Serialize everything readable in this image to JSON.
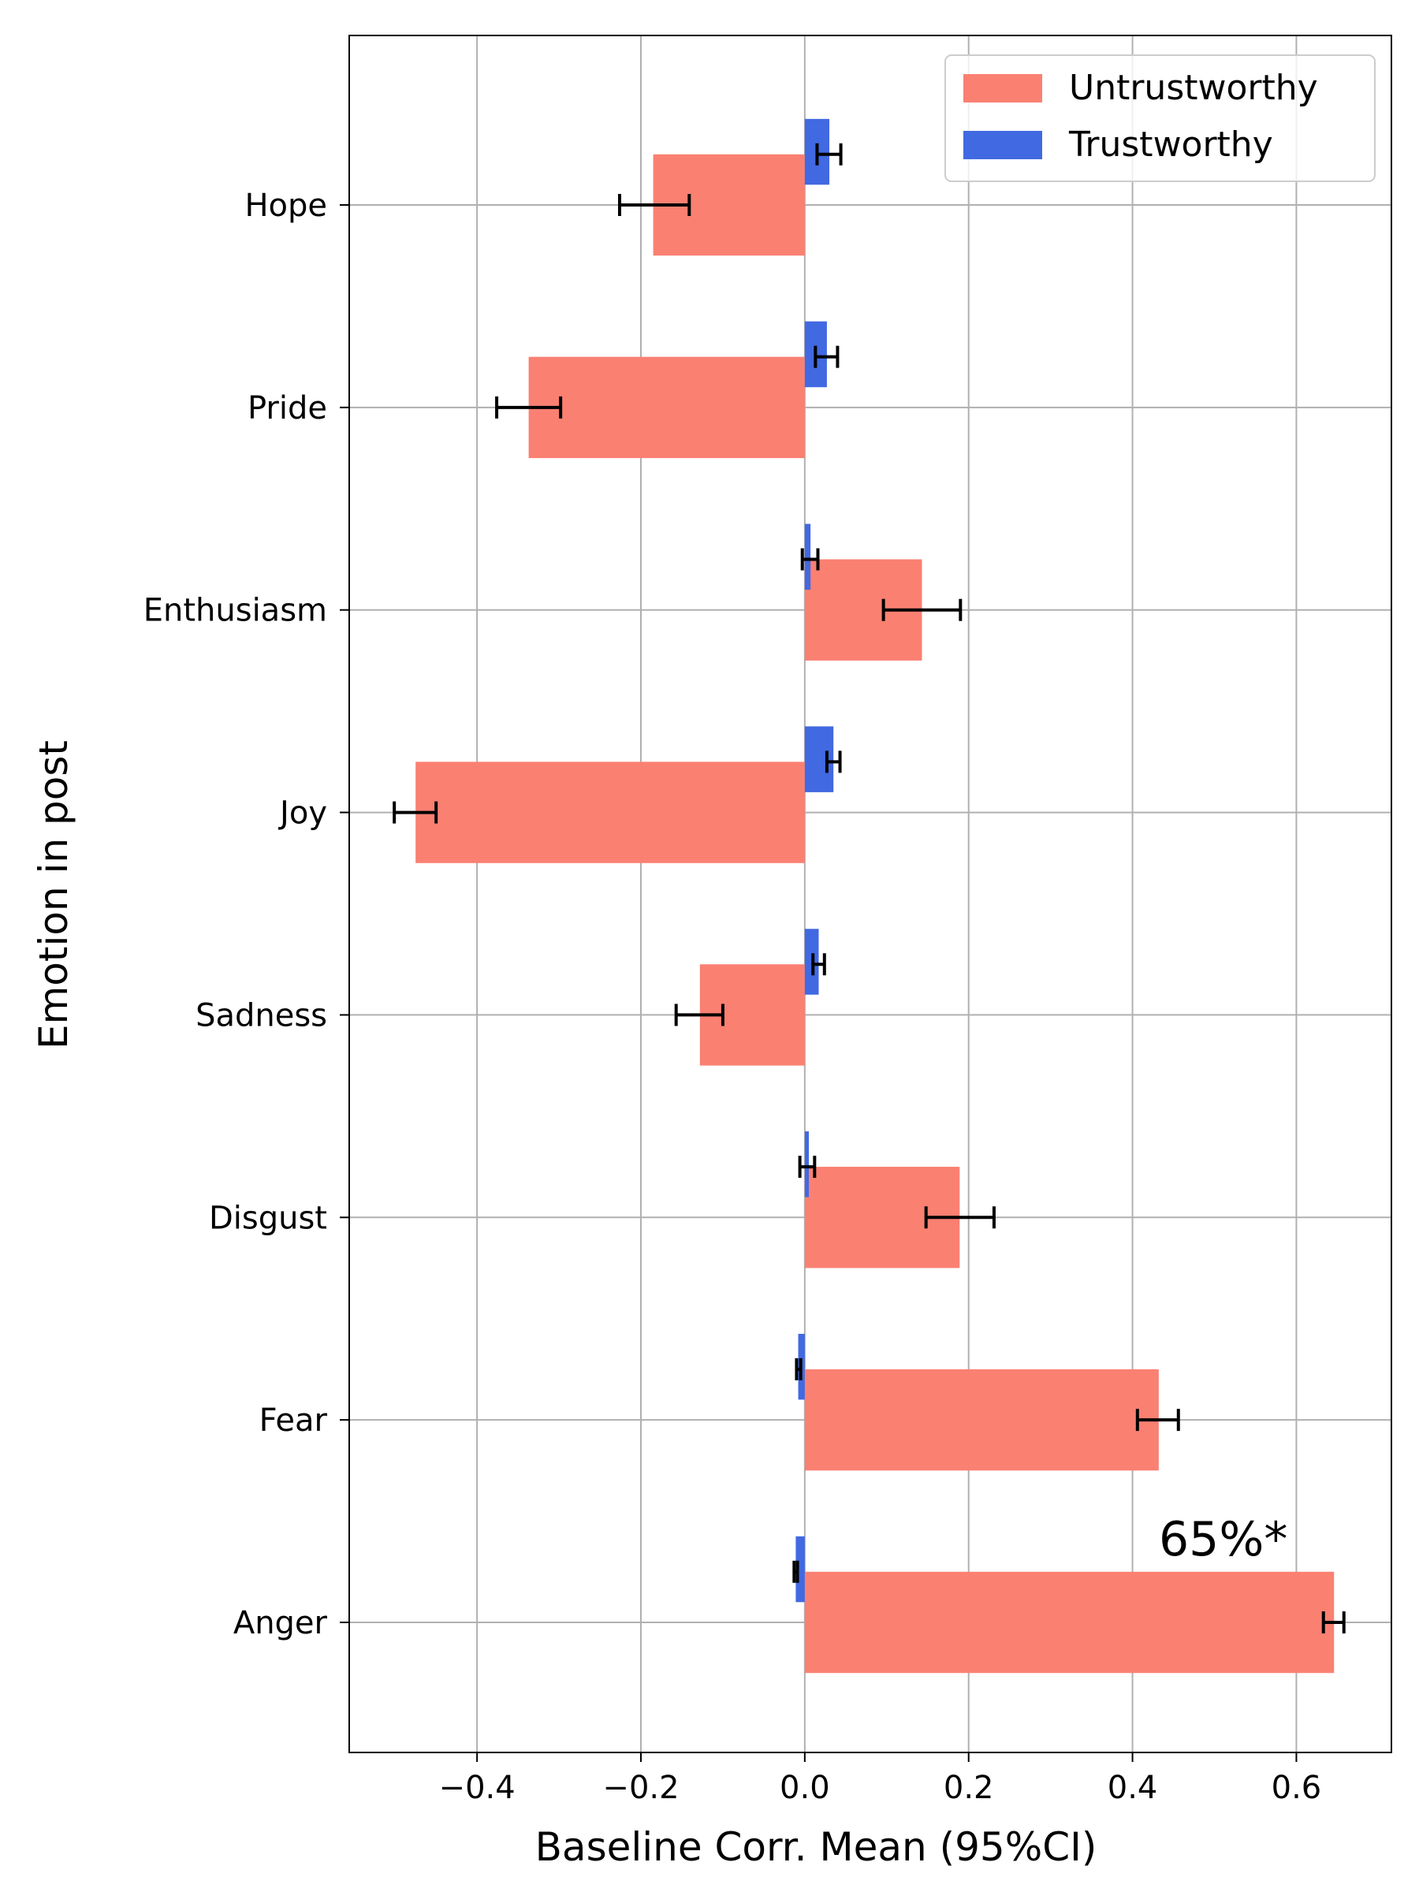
{
  "chart_data": {
    "type": "bar",
    "orientation": "horizontal",
    "categories": [
      "Hope",
      "Pride",
      "Enthusiasm",
      "Joy",
      "Sadness",
      "Disgust",
      "Fear",
      "Anger"
    ],
    "series": [
      {
        "name": "Untrustworthy",
        "color": "#fa8072",
        "values": [
          -0.185,
          -0.337,
          0.143,
          -0.475,
          -0.128,
          0.189,
          0.432,
          0.646
        ],
        "ci_low": [
          -0.226,
          -0.376,
          0.096,
          -0.501,
          -0.157,
          0.148,
          0.406,
          0.633
        ],
        "ci_high": [
          -0.141,
          -0.298,
          0.19,
          -0.45,
          -0.1,
          0.231,
          0.456,
          0.658
        ]
      },
      {
        "name": "Trustworthy",
        "color": "#4169e1",
        "values": [
          0.03,
          0.027,
          0.007,
          0.035,
          0.017,
          0.005,
          -0.008,
          -0.011
        ],
        "ci_low": [
          0.015,
          0.013,
          -0.003,
          0.027,
          0.01,
          -0.006,
          -0.01,
          -0.013
        ],
        "ci_high": [
          0.044,
          0.04,
          0.016,
          0.043,
          0.024,
          0.012,
          -0.005,
          -0.009
        ]
      }
    ],
    "xlabel": "Baseline Corr. Mean (95%CI)",
    "ylabel": "Emotion in post",
    "xlim": [
      -0.556,
      0.716
    ],
    "xticks": [
      -0.4,
      -0.2,
      0.0,
      0.2,
      0.4,
      0.6
    ],
    "xtick_labels": [
      "−0.4",
      "−0.2",
      "0.0",
      "0.2",
      "0.4",
      "0.6"
    ],
    "grid": true,
    "legend_position": "top-right",
    "annotation": {
      "text": "65%*",
      "category": "Anger"
    }
  }
}
